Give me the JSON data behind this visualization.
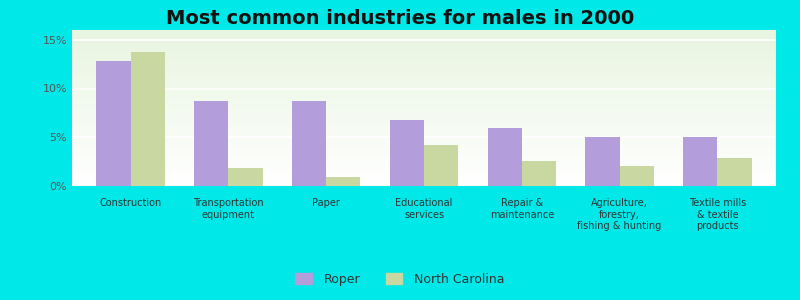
{
  "title": "Most common industries for males in 2000",
  "categories": [
    "Construction",
    "Transportation\nequipment",
    "Paper",
    "Educational\nservices",
    "Repair &\nmaintenance",
    "Agriculture,\nforestry,\nfishing & hunting",
    "Textile mills\n& textile\nproducts"
  ],
  "roper_values": [
    12.8,
    8.7,
    8.7,
    6.8,
    5.9,
    5.0,
    5.0
  ],
  "nc_values": [
    13.7,
    1.8,
    0.9,
    4.2,
    2.6,
    2.1,
    2.9
  ],
  "roper_color": "#b39ddb",
  "nc_color": "#c8d8a0",
  "background_outer": "#00e8e8",
  "plot_bg_top": "#e8f5e0",
  "plot_bg_bottom": "#f8fdf4",
  "ylim": [
    0,
    16
  ],
  "yticks": [
    0,
    5,
    10,
    15
  ],
  "ytick_labels": [
    "0%",
    "5%",
    "10%",
    "15%"
  ],
  "legend_labels": [
    "Roper",
    "North Carolina"
  ],
  "bar_width": 0.35,
  "title_fontsize": 14,
  "axis_label_fontsize": 8,
  "legend_fontsize": 9
}
